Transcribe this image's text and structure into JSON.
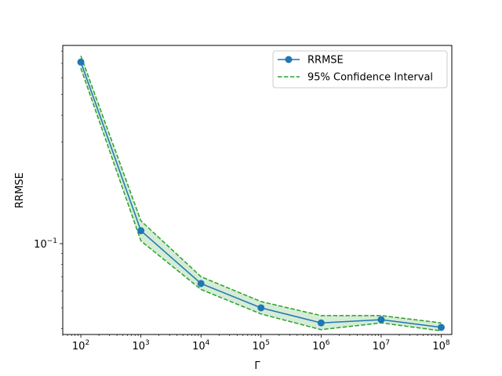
{
  "chart_data": {
    "type": "line",
    "title": "",
    "xlabel": "Γ",
    "ylabel": "RRMSE",
    "x_scale": "log",
    "y_scale": "log",
    "xlim": [
      50,
      150000000
    ],
    "ylim": [
      0.0375,
      0.85
    ],
    "x": [
      100,
      1000,
      10000,
      100000,
      1000000,
      10000000,
      100000000
    ],
    "x_ticks": [
      {
        "value": 100,
        "base": "10",
        "exp": "2"
      },
      {
        "value": 1000,
        "base": "10",
        "exp": "3"
      },
      {
        "value": 10000,
        "base": "10",
        "exp": "4"
      },
      {
        "value": 100000,
        "base": "10",
        "exp": "5"
      },
      {
        "value": 1000000,
        "base": "10",
        "exp": "6"
      },
      {
        "value": 10000000,
        "base": "10",
        "exp": "7"
      },
      {
        "value": 100000000,
        "base": "10",
        "exp": "8"
      }
    ],
    "y_ticks": [
      {
        "value": 0.1,
        "base": "10",
        "exp": "−1"
      }
    ],
    "series": [
      {
        "name": "RRMSE",
        "color": "#1f77b4",
        "marker": "circle",
        "values": [
          0.71,
          0.115,
          0.065,
          0.05,
          0.0425,
          0.044,
          0.0405
        ]
      }
    ],
    "band": {
      "name": "95% Confidence Interval",
      "color": "#2ca02c",
      "fill": "#2ca02c",
      "fill_opacity": 0.2,
      "line_style": "dashed",
      "upper": [
        0.76,
        0.128,
        0.07,
        0.0535,
        0.046,
        0.046,
        0.0425
      ],
      "lower": [
        0.665,
        0.103,
        0.061,
        0.0468,
        0.0395,
        0.0425,
        0.039
      ]
    },
    "grid": false,
    "legend": {
      "position": "top-right",
      "entries": [
        "RRMSE",
        "95% Confidence Interval"
      ]
    }
  }
}
